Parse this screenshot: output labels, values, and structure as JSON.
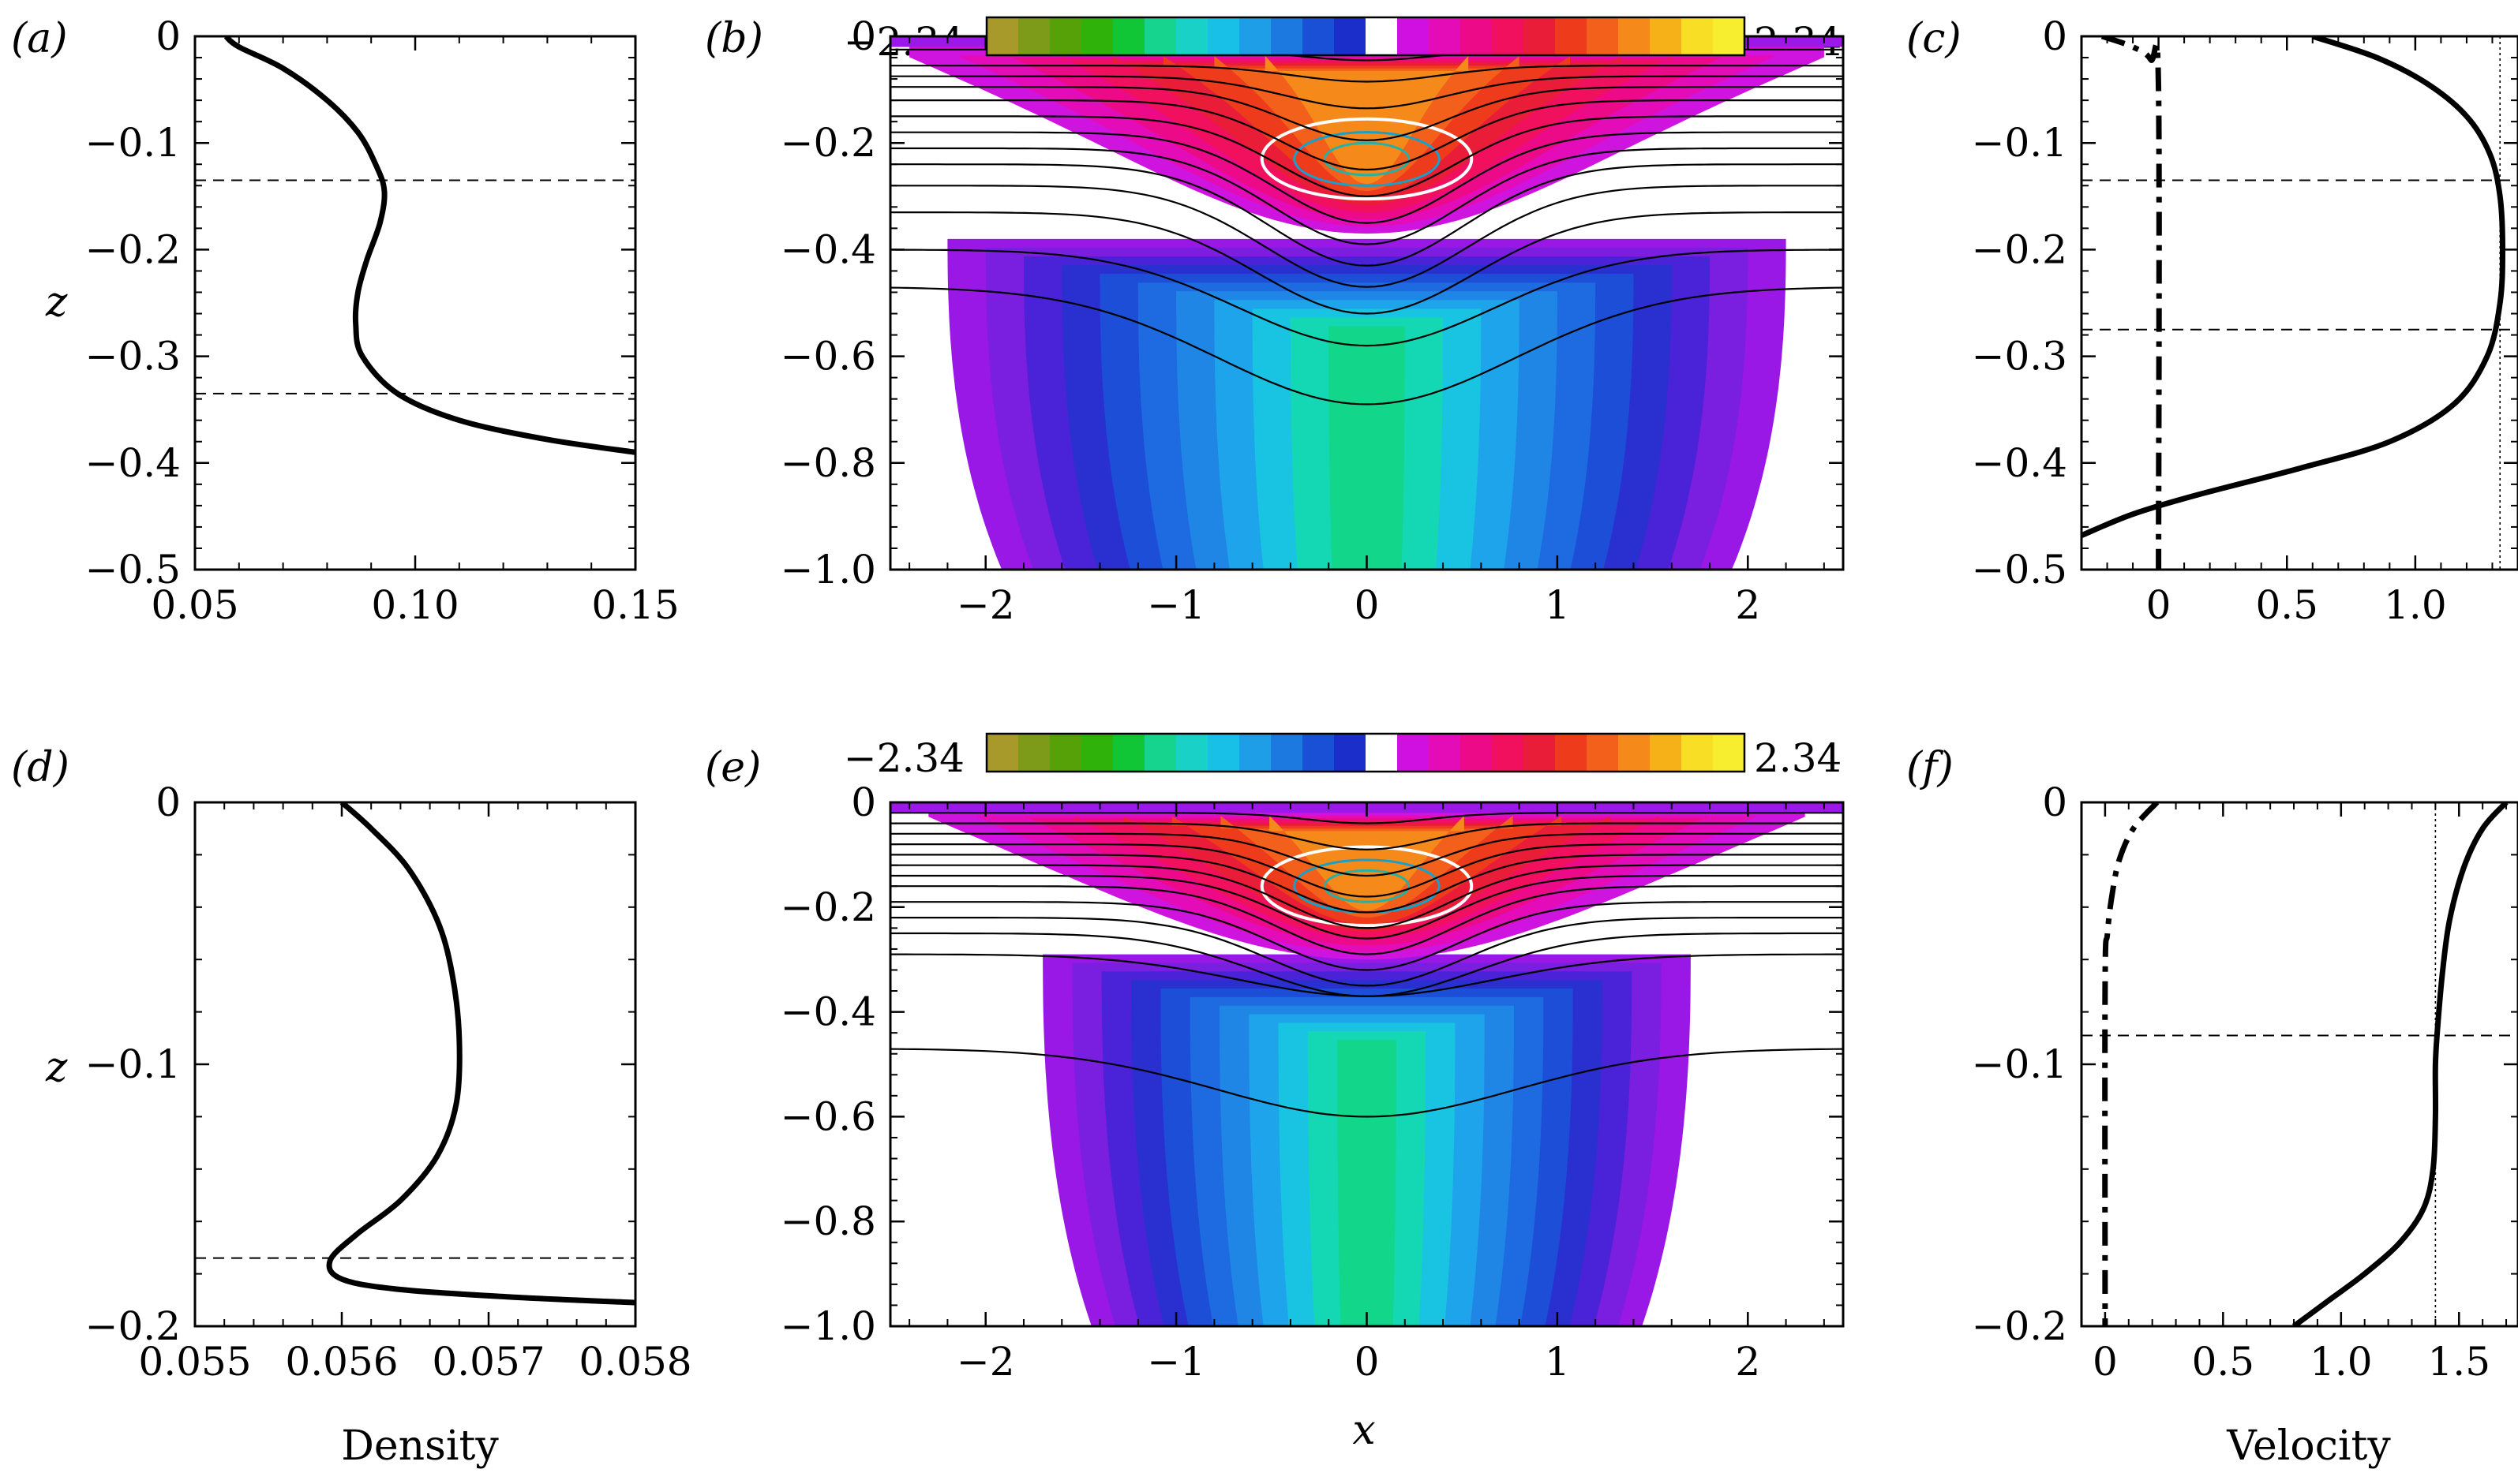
{
  "figure": {
    "xlabels": {
      "density": "Density",
      "x": "x",
      "velocity": "Velocity"
    },
    "ylabel": "z"
  },
  "colorbar": {
    "min_label": "−2.34",
    "max_label": "2.34",
    "colors": [
      "#a89a2a",
      "#7d9b18",
      "#56a008",
      "#2fb20a",
      "#10c637",
      "#16d48e",
      "#1ad1c8",
      "#18bfe6",
      "#1f9ee8",
      "#1c79e0",
      "#1a50d6",
      "#1b2ec9",
      "#ffffff",
      "#d010e0",
      "#e40cb6",
      "#ec0a88",
      "#f0105e",
      "#ea1d38",
      "#ee3b1c",
      "#f2601c",
      "#f58a1a",
      "#f7b118",
      "#f8de24",
      "#f8ee30"
    ]
  },
  "chart_data": [
    {
      "panel": "a",
      "panel_label": "(a)",
      "type": "line",
      "xlim": [
        0.05,
        0.15
      ],
      "ylim": [
        -0.5,
        0
      ],
      "xticks": [
        "0.05",
        "0.10",
        "0.15"
      ],
      "yticks": [
        "0",
        "−0.1",
        "−0.2",
        "−0.3",
        "−0.4",
        "−0.5"
      ],
      "xlabel": "",
      "ylabel": "z",
      "hlines": [
        -0.135,
        -0.335
      ],
      "series": [
        {
          "name": "density",
          "style": "solid",
          "x": [
            0.057,
            0.06,
            0.07,
            0.08,
            0.087,
            0.091,
            0.093,
            0.092,
            0.089,
            0.087,
            0.0865,
            0.088,
            0.096,
            0.11,
            0.13,
            0.15
          ],
          "y": [
            0,
            -0.01,
            -0.03,
            -0.06,
            -0.09,
            -0.12,
            -0.145,
            -0.175,
            -0.21,
            -0.24,
            -0.27,
            -0.3,
            -0.335,
            -0.36,
            -0.378,
            -0.39
          ]
        }
      ]
    },
    {
      "panel": "b",
      "panel_label": "(b)",
      "type": "contour",
      "xlim": [
        -2.5,
        2.5
      ],
      "ylim": [
        -1.0,
        0
      ],
      "xticks": [
        "−2",
        "−1",
        "0",
        "1",
        "2"
      ],
      "yticks": [
        "0",
        "−0.2",
        "−0.4",
        "−0.6",
        "−0.8",
        "−1.0"
      ],
      "lower_region": {
        "ztop": -0.38,
        "width": 2.2,
        "zbottom": -1.0
      },
      "upper_region": {
        "ztop": -0.03,
        "center_depth": -0.37,
        "width": 2.4
      },
      "streamline_levels": [
        -0.025,
        -0.055,
        -0.075,
        -0.095,
        -0.12,
        -0.15,
        -0.18,
        -0.21,
        -0.24,
        -0.28,
        -0.33,
        -0.4,
        -0.47
      ],
      "streamline_dips": [
        0.02,
        0.03,
        0.06,
        0.1,
        0.13,
        0.15,
        0.17,
        0.18,
        0.19,
        0.19,
        0.19,
        0.18,
        0.22
      ],
      "streamline_widths": [
        0.5,
        0.55,
        0.6,
        0.6,
        0.62,
        0.65,
        0.68,
        0.7,
        0.72,
        0.75,
        0.8,
        0.95,
        1.1
      ]
    },
    {
      "panel": "c",
      "panel_label": "(c)",
      "type": "line",
      "xlim": [
        -0.3,
        1.4
      ],
      "ylim": [
        -0.5,
        0
      ],
      "xticks": [
        "0",
        "0.5",
        "1.0"
      ],
      "yticks": [
        "0",
        "−0.1",
        "−0.2",
        "−0.3",
        "−0.4",
        "−0.5"
      ],
      "xlabel": "",
      "ylabel": "",
      "hlines": [
        -0.135,
        -0.275
      ],
      "vline": 1.33,
      "series": [
        {
          "name": "u",
          "style": "solid",
          "x": [
            0.6,
            0.85,
            1.05,
            1.2,
            1.29,
            1.33,
            1.34,
            1.33,
            1.28,
            1.15,
            0.9,
            0.55,
            0.15,
            -0.1,
            -0.3
          ],
          "y": [
            0,
            -0.02,
            -0.045,
            -0.075,
            -0.11,
            -0.15,
            -0.2,
            -0.25,
            -0.3,
            -0.345,
            -0.38,
            -0.405,
            -0.43,
            -0.448,
            -0.468
          ]
        },
        {
          "name": "w",
          "style": "dashdot",
          "x": [
            -0.22,
            -0.1,
            -0.03,
            0.0,
            0.0
          ],
          "y": [
            0,
            -0.01,
            -0.022,
            -0.05,
            -0.5
          ]
        }
      ]
    },
    {
      "panel": "d",
      "panel_label": "(d)",
      "type": "line",
      "xlim": [
        0.055,
        0.058
      ],
      "ylim": [
        -0.2,
        0
      ],
      "xticks": [
        "0.055",
        "0.056",
        "0.057",
        "0.058"
      ],
      "yticks": [
        "0",
        "−0.1",
        "−0.2"
      ],
      "xlabel": "Density",
      "ylabel": "z",
      "hlines": [
        -0.174
      ],
      "series": [
        {
          "name": "density",
          "style": "solid",
          "x": [
            0.056,
            0.0562,
            0.05645,
            0.05665,
            0.05675,
            0.0568,
            0.05678,
            0.05665,
            0.0564,
            0.0561,
            0.05592,
            0.056,
            0.0564,
            0.0572,
            0.058
          ],
          "y": [
            0,
            -0.01,
            -0.025,
            -0.045,
            -0.065,
            -0.09,
            -0.115,
            -0.135,
            -0.152,
            -0.165,
            -0.175,
            -0.182,
            -0.186,
            -0.189,
            -0.191
          ]
        }
      ]
    },
    {
      "panel": "e",
      "panel_label": "(e)",
      "type": "contour",
      "xlim": [
        -2.5,
        2.5
      ],
      "ylim": [
        -1.0,
        0
      ],
      "xticks": [
        "−2",
        "−1",
        "0",
        "1",
        "2"
      ],
      "yticks": [
        "0",
        "−0.2",
        "−0.4",
        "−0.6",
        "−0.8",
        "−1.0"
      ],
      "xlabel": "x",
      "lower_region": {
        "ztop": -0.29,
        "width": 1.7,
        "zbottom": -1.0
      },
      "upper_region": {
        "ztop": -0.02,
        "center_depth": -0.3,
        "width": 2.3
      },
      "streamline_levels": [
        -0.02,
        -0.04,
        -0.06,
        -0.08,
        -0.1,
        -0.12,
        -0.14,
        -0.16,
        -0.19,
        -0.22,
        -0.25,
        -0.29,
        -0.47
      ],
      "streamline_dips": [
        0.02,
        0.05,
        0.08,
        0.1,
        0.11,
        0.12,
        0.12,
        0.13,
        0.13,
        0.13,
        0.12,
        0.08,
        0.13
      ],
      "streamline_widths": [
        0.45,
        0.5,
        0.52,
        0.55,
        0.58,
        0.6,
        0.62,
        0.65,
        0.68,
        0.72,
        0.8,
        0.95,
        1.1
      ]
    },
    {
      "panel": "f",
      "panel_label": "(f)",
      "type": "line",
      "xlim": [
        -0.1,
        1.75
      ],
      "ylim": [
        -0.2,
        0
      ],
      "xticks": [
        "0",
        "0.5",
        "1.0",
        "1.5"
      ],
      "yticks": [
        "0",
        "−0.1",
        "−0.2"
      ],
      "xlabel": "Velocity",
      "ylabel": "",
      "hlines": [
        -0.089
      ],
      "vline": 1.4,
      "series": [
        {
          "name": "u",
          "style": "solid",
          "x": [
            1.7,
            1.6,
            1.52,
            1.46,
            1.43,
            1.41,
            1.4,
            1.4,
            1.39,
            1.35,
            1.25,
            1.1,
            0.95,
            0.8
          ],
          "y": [
            0,
            -0.01,
            -0.025,
            -0.045,
            -0.065,
            -0.085,
            -0.1,
            -0.12,
            -0.14,
            -0.155,
            -0.168,
            -0.18,
            -0.19,
            -0.2
          ]
        },
        {
          "name": "w",
          "style": "dashdot",
          "x": [
            0.22,
            0.12,
            0.06,
            0.03,
            0.01,
            0.0,
            0.0
          ],
          "y": [
            0,
            -0.01,
            -0.022,
            -0.035,
            -0.05,
            -0.07,
            -0.2
          ]
        }
      ]
    }
  ]
}
